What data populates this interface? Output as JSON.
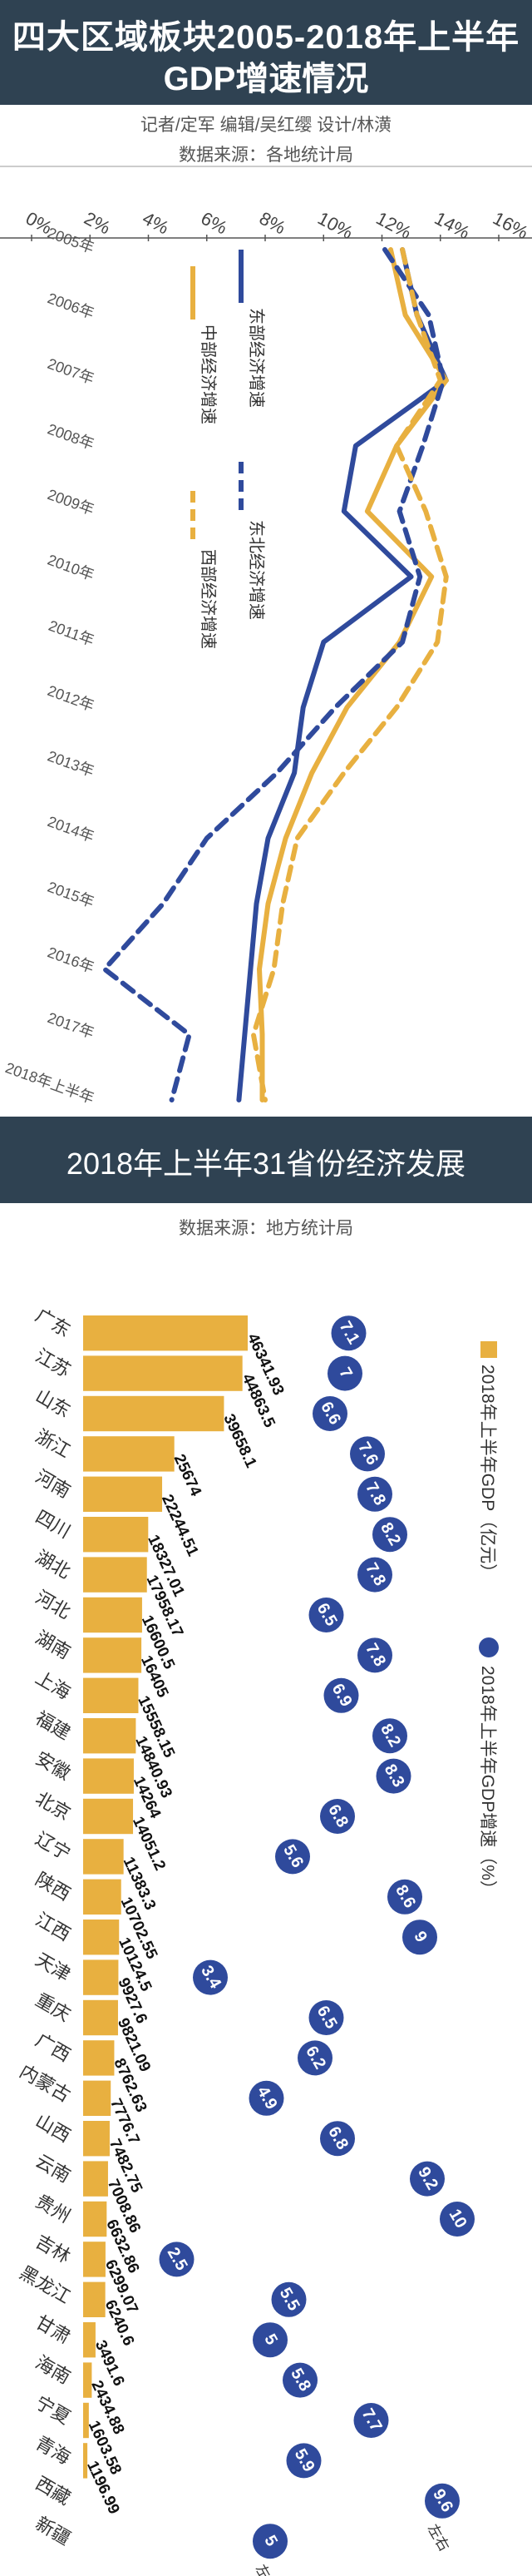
{
  "colors": {
    "band": "#2f4252",
    "east": "#2f4a9c",
    "northeast": "#2f4a9c",
    "central": "#e8b040",
    "west": "#e8b040",
    "bar": "#e8b040",
    "bubble": "#2f4a9c"
  },
  "header": {
    "title_line1": "四大区域板块2005-2018年上半年",
    "title_line2": "GDP增速情况",
    "credits": "记者/定军   编辑/吴红缨   设计/林潢",
    "source": "数据来源：各地统计局"
  },
  "section2": {
    "title": "2018年上半年31省份经济发展",
    "source": "数据来源：地方统计局"
  },
  "chart_data": [
    {
      "type": "line",
      "title": "四大区域板块2005-2018年上半年GDP增速情况",
      "x_tick_labels": [
        "0%",
        "2%",
        "4%",
        "6%",
        "8%",
        "10%",
        "12%",
        "14%",
        "16%"
      ],
      "xlim": [
        0,
        16
      ],
      "categories": [
        "2005年",
        "2006年",
        "2007年",
        "2008年",
        "2009年",
        "2010年",
        "2011年",
        "2012年",
        "2013年",
        "2014年",
        "2015年",
        "2016年",
        "2017年",
        "2018年上半年"
      ],
      "series": [
        {
          "name": "东部经济增速",
          "style": "solid",
          "color": "#2f4a9c",
          "values": [
            12.7,
            13.2,
            14.2,
            11.1,
            10.7,
            13.0,
            10.0,
            9.3,
            9.0,
            8.1,
            7.7,
            7.5,
            7.3,
            7.1
          ]
        },
        {
          "name": "中部经济增速",
          "style": "solid",
          "color": "#e8b040",
          "values": [
            12.3,
            12.8,
            14.2,
            12.5,
            11.5,
            13.7,
            12.6,
            10.8,
            9.6,
            8.7,
            8.1,
            7.8,
            7.9,
            7.9
          ]
        },
        {
          "name": "东北经济增速",
          "style": "dashed",
          "color": "#2f4a9c",
          "values": [
            12.1,
            13.6,
            14.1,
            13.4,
            12.6,
            13.3,
            12.7,
            10.4,
            8.4,
            6.0,
            4.5,
            2.5,
            5.4,
            4.8
          ]
        },
        {
          "name": "西部经济增速",
          "style": "dashed",
          "color": "#e8b040",
          "values": [
            12.7,
            13.2,
            14.0,
            12.5,
            13.5,
            14.2,
            13.9,
            12.5,
            10.7,
            9.1,
            8.6,
            8.3,
            7.6,
            8.0
          ]
        }
      ]
    },
    {
      "type": "bar",
      "title": "2018年上半年31省份经济发展",
      "legend": [
        {
          "name": "2018年上半年GDP（亿元）",
          "marker": "square",
          "color": "#e8b040"
        },
        {
          "name": "2018年上半年GDP增速（%）",
          "marker": "circle",
          "color": "#2f4a9c"
        }
      ],
      "categories": [
        "广东",
        "江苏",
        "山东",
        "浙江",
        "河南",
        "四川",
        "湖北",
        "河北",
        "湖南",
        "上海",
        "福建",
        "安徽",
        "北京",
        "辽宁",
        "陕西",
        "江西",
        "天津",
        "重庆",
        "广西",
        "内蒙古",
        "山西",
        "云南",
        "贵州",
        "吉林",
        "黑龙江",
        "甘肃",
        "海南",
        "宁夏",
        "青海",
        "西藏",
        "新疆"
      ],
      "gdp_labels": [
        "46341.93",
        "44863.5",
        "39658.1",
        "25674",
        "22244.51",
        "18327.01",
        "17958.17",
        "16600.5",
        "16405",
        "15558.15",
        "14840.93",
        "14264",
        "14051.2",
        "11383.3",
        "10702.55",
        "10124.5",
        "9927.6",
        "9821.09",
        "8762.63",
        "7776.7",
        "7482.75",
        "7008.86",
        "6632.86",
        "6299.07",
        "6240.6",
        "3491.6",
        "2434.88",
        "1603.58",
        "1196.99",
        "",
        ""
      ],
      "gdp": [
        46341.93,
        44863.5,
        39658.1,
        25674,
        22244.51,
        18327.01,
        17958.17,
        16600.5,
        16405,
        15558.15,
        14840.93,
        14264,
        14051.2,
        11383.3,
        10702.55,
        10124.5,
        9927.6,
        9821.09,
        8762.63,
        7776.7,
        7482.75,
        7008.86,
        6632.86,
        6299.07,
        6240.6,
        3491.6,
        2434.88,
        1603.58,
        1196.99,
        null,
        null
      ],
      "growth": [
        7.1,
        7,
        6.6,
        7.6,
        7.8,
        8.2,
        7.8,
        6.5,
        7.8,
        6.9,
        8.2,
        8.3,
        6.8,
        5.6,
        8.6,
        9,
        3.4,
        6.5,
        6.2,
        4.9,
        6.8,
        9.2,
        10,
        2.5,
        5.5,
        5,
        5.8,
        7.7,
        5.9,
        9.6,
        5
      ],
      "growth_notes": [
        {
          "index": 29,
          "text": "左右"
        },
        {
          "index": 30,
          "text": "左右"
        }
      ]
    }
  ]
}
